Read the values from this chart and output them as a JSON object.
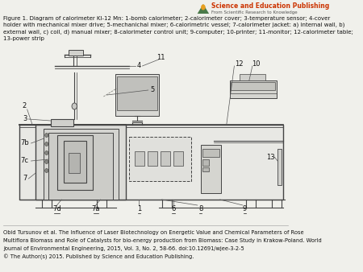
{
  "bg_color": "#f0f0eb",
  "lc": "#444444",
  "lw": 0.8,
  "caption": "Figure 1. Diagram of calorimeter Kl-12 Mn: 1-bomb calorimeter; 2-calorimeter cover; 3-temperature sensor; 4-cover\nholder with mechanical mixer drive; 5-mechanichal mixer; 6-calorimetric vessel; 7-calorimeter jacket: a) internal wall, b)\nexternal wall, c) coil, d) manual mixer; 8-calorimeter control unit; 9-computer; 10-printer; 11-monitor; 12-calorimeter table;\n13-power strip",
  "footer1": "Obid Tursunov et al. The Influence of Laser Biotechnology on Energetic Value and Chemical Parameters of Rose",
  "footer2": "Multiflora Biomass and Role of Catalysts for bio-energy production from Biomass: Case Study in Krakow-Poland. World",
  "footer3": "Journal of Environmental Engineering, 2015, Vol. 3, No. 2, 58-66. doi:10.12691/wjee-3-2-5",
  "footer4": "© The Author(s) 2015. Published by Science and Education Publishing.",
  "logo1": "Science and Education Publishing",
  "logo2": "From Scientific Research to Knowledge"
}
